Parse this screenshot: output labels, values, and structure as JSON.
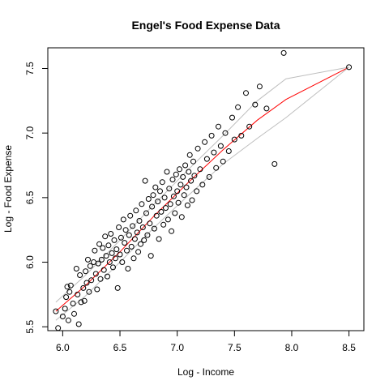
{
  "chart_data": {
    "type": "scatter",
    "title": "Engel's Food Expense Data",
    "xlabel": "Log - Income",
    "ylabel": "Log - Food Expense",
    "xlim": [
      5.87,
      8.63
    ],
    "ylim": [
      5.47,
      7.66
    ],
    "xticks": [
      6.0,
      6.5,
      7.0,
      7.5,
      8.0,
      8.5
    ],
    "xtick_labels": [
      "6.0",
      "6.5",
      "7.0",
      "7.5",
      "8.0",
      "8.5"
    ],
    "yticks": [
      5.5,
      6.0,
      6.5,
      7.0,
      7.5
    ],
    "ytick_labels": [
      "5.5",
      "6.0",
      "6.5",
      "7.0",
      "7.5"
    ],
    "grid": false,
    "series": [
      {
        "kind": "points",
        "marker": "open-circle",
        "color": "#000000",
        "points": [
          [
            5.94,
            5.62
          ],
          [
            5.96,
            5.49
          ],
          [
            6.0,
            5.58
          ],
          [
            6.02,
            5.64
          ],
          [
            6.03,
            5.73
          ],
          [
            6.04,
            5.81
          ],
          [
            6.05,
            5.55
          ],
          [
            6.06,
            5.77
          ],
          [
            6.07,
            5.82
          ],
          [
            6.09,
            5.68
          ],
          [
            6.1,
            5.6
          ],
          [
            6.12,
            5.95
          ],
          [
            6.13,
            5.75
          ],
          [
            6.14,
            5.52
          ],
          [
            6.15,
            5.9
          ],
          [
            6.16,
            5.69
          ],
          [
            6.18,
            5.8
          ],
          [
            6.19,
            5.7
          ],
          [
            6.2,
            5.93
          ],
          [
            6.21,
            5.84
          ],
          [
            6.22,
            6.02
          ],
          [
            6.23,
            5.77
          ],
          [
            6.24,
            5.97
          ],
          [
            6.25,
            5.86
          ],
          [
            6.27,
            6.0
          ],
          [
            6.28,
            6.09
          ],
          [
            6.29,
            5.91
          ],
          [
            6.3,
            5.79
          ],
          [
            6.31,
            5.99
          ],
          [
            6.32,
            6.14
          ],
          [
            6.33,
            5.87
          ],
          [
            6.34,
            6.02
          ],
          [
            6.35,
            6.11
          ],
          [
            6.36,
            5.94
          ],
          [
            6.37,
            6.2
          ],
          [
            6.38,
            6.05
          ],
          [
            6.39,
            5.89
          ],
          [
            6.4,
            6.13
          ],
          [
            6.41,
            6.0
          ],
          [
            6.42,
            6.22
          ],
          [
            6.43,
            6.07
          ],
          [
            6.44,
            5.96
          ],
          [
            6.45,
            6.17
          ],
          [
            6.46,
            6.03
          ],
          [
            6.47,
            6.1
          ],
          [
            6.48,
            5.8
          ],
          [
            6.49,
            6.27
          ],
          [
            6.5,
            6.06
          ],
          [
            6.51,
            6.19
          ],
          [
            6.52,
            6.0
          ],
          [
            6.53,
            6.33
          ],
          [
            6.54,
            6.15
          ],
          [
            6.55,
            6.25
          ],
          [
            6.56,
            6.09
          ],
          [
            6.57,
            5.95
          ],
          [
            6.58,
            6.21
          ],
          [
            6.59,
            6.36
          ],
          [
            6.6,
            6.12
          ],
          [
            6.61,
            6.28
          ],
          [
            6.62,
            6.03
          ],
          [
            6.63,
            6.18
          ],
          [
            6.64,
            6.4
          ],
          [
            6.65,
            6.23
          ],
          [
            6.66,
            6.08
          ],
          [
            6.67,
            6.32
          ],
          [
            6.68,
            6.14
          ],
          [
            6.69,
            6.45
          ],
          [
            6.7,
            6.27
          ],
          [
            6.71,
            6.17
          ],
          [
            6.72,
            6.63
          ],
          [
            6.73,
            6.38
          ],
          [
            6.74,
            6.21
          ],
          [
            6.75,
            6.49
          ],
          [
            6.76,
            6.3
          ],
          [
            6.77,
            6.05
          ],
          [
            6.78,
            6.43
          ],
          [
            6.79,
            6.52
          ],
          [
            6.8,
            6.26
          ],
          [
            6.81,
            6.58
          ],
          [
            6.82,
            6.36
          ],
          [
            6.83,
            6.47
          ],
          [
            6.84,
            6.18
          ],
          [
            6.85,
            6.55
          ],
          [
            6.86,
            6.39
          ],
          [
            6.87,
            6.62
          ],
          [
            6.88,
            6.29
          ],
          [
            6.89,
            6.5
          ],
          [
            6.9,
            6.42
          ],
          [
            6.91,
            6.7
          ],
          [
            6.92,
            6.33
          ],
          [
            6.93,
            6.57
          ],
          [
            6.94,
            6.45
          ],
          [
            6.95,
            6.24
          ],
          [
            6.96,
            6.64
          ],
          [
            6.97,
            6.51
          ],
          [
            6.98,
            6.38
          ],
          [
            6.99,
            6.68
          ],
          [
            7.0,
            6.55
          ],
          [
            7.01,
            6.46
          ],
          [
            7.02,
            6.72
          ],
          [
            7.03,
            6.6
          ],
          [
            7.04,
            6.35
          ],
          [
            7.05,
            6.66
          ],
          [
            7.06,
            6.52
          ],
          [
            7.07,
            6.75
          ],
          [
            7.08,
            6.58
          ],
          [
            7.09,
            6.44
          ],
          [
            7.1,
            6.7
          ],
          [
            7.11,
            6.83
          ],
          [
            7.12,
            6.63
          ],
          [
            7.13,
            6.48
          ],
          [
            7.14,
            6.78
          ],
          [
            7.15,
            6.67
          ],
          [
            7.17,
            6.55
          ],
          [
            7.18,
            6.88
          ],
          [
            7.2,
            6.72
          ],
          [
            7.22,
            6.6
          ],
          [
            7.24,
            6.93
          ],
          [
            7.26,
            6.8
          ],
          [
            7.28,
            6.66
          ],
          [
            7.3,
            6.98
          ],
          [
            7.32,
            6.85
          ],
          [
            7.34,
            6.73
          ],
          [
            7.36,
            7.05
          ],
          [
            7.38,
            6.9
          ],
          [
            7.4,
            6.78
          ],
          [
            7.42,
            7.0
          ],
          [
            7.45,
            6.86
          ],
          [
            7.48,
            7.12
          ],
          [
            7.5,
            6.95
          ],
          [
            7.53,
            7.2
          ],
          [
            7.56,
            6.98
          ],
          [
            7.6,
            7.31
          ],
          [
            7.63,
            7.05
          ],
          [
            7.68,
            7.22
          ],
          [
            7.72,
            7.36
          ],
          [
            7.78,
            7.19
          ],
          [
            7.85,
            6.76
          ],
          [
            7.93,
            7.62
          ],
          [
            8.5,
            7.51
          ]
        ]
      },
      {
        "kind": "line",
        "name": "",
        "color": "#ff0000",
        "points": [
          [
            5.94,
            5.62
          ],
          [
            6.2,
            5.82
          ],
          [
            6.5,
            6.08
          ],
          [
            6.8,
            6.36
          ],
          [
            7.1,
            6.62
          ],
          [
            7.4,
            6.87
          ],
          [
            7.7,
            7.1
          ],
          [
            7.95,
            7.26
          ],
          [
            8.5,
            7.51
          ]
        ]
      },
      {
        "kind": "line",
        "name": "",
        "color": "#bebebe",
        "points": [
          [
            5.94,
            5.69
          ],
          [
            6.2,
            5.9
          ],
          [
            6.5,
            6.17
          ],
          [
            6.8,
            6.45
          ],
          [
            7.1,
            6.72
          ],
          [
            7.4,
            6.98
          ],
          [
            7.7,
            7.25
          ],
          [
            7.95,
            7.42
          ],
          [
            8.5,
            7.51
          ]
        ]
      },
      {
        "kind": "line",
        "name": "",
        "color": "#bebebe",
        "points": [
          [
            5.94,
            5.55
          ],
          [
            6.2,
            5.74
          ],
          [
            6.5,
            6.0
          ],
          [
            6.8,
            6.27
          ],
          [
            7.1,
            6.52
          ],
          [
            7.4,
            6.76
          ],
          [
            7.7,
            6.96
          ],
          [
            7.95,
            7.12
          ],
          [
            8.5,
            7.51
          ]
        ]
      }
    ]
  }
}
